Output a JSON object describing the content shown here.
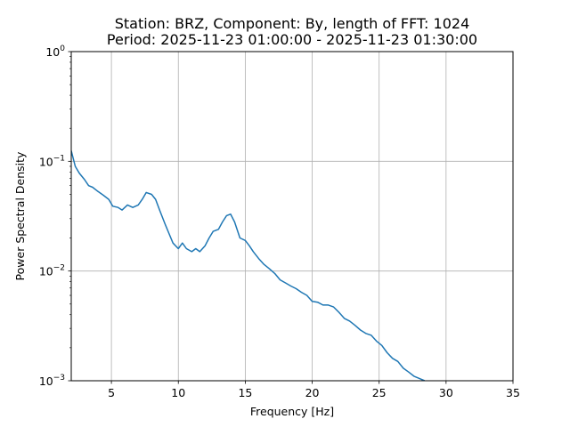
{
  "chart_data": {
    "type": "line",
    "title_line1": "Station: BRZ, Component: By, length of FFT: 1024",
    "title_line2": "Period: 2025-11-23 01:00:00 - 2025-11-23 01:30:00",
    "xlabel": "Frequency [Hz]",
    "ylabel": "Power Spectral Density",
    "xlim": [
      2,
      35
    ],
    "ylim": [
      0.001,
      1
    ],
    "yscale": "log",
    "grid": true,
    "line_color": "#1f77b4",
    "x_ticks": [
      5,
      10,
      15,
      20,
      25,
      30,
      35
    ],
    "y_ticks": [
      {
        "value": 0.001,
        "base": "10",
        "exp": "−3"
      },
      {
        "value": 0.01,
        "base": "10",
        "exp": "−2"
      },
      {
        "value": 0.1,
        "base": "10",
        "exp": "−1"
      },
      {
        "value": 1,
        "base": "10",
        "exp": "0"
      }
    ],
    "series": [
      {
        "x": [
          2.0,
          2.3,
          2.6,
          3.0,
          3.3,
          3.6,
          4.0,
          4.4,
          4.8,
          5.1,
          5.5,
          5.8,
          6.2,
          6.6,
          7.0,
          7.3,
          7.6,
          8.0,
          8.3,
          8.6,
          9.0,
          9.3,
          9.6,
          10.0,
          10.3,
          10.6,
          11.0,
          11.3,
          11.6,
          12.0,
          12.3,
          12.6,
          13.0,
          13.3,
          13.6,
          13.9,
          14.2,
          14.6,
          15.0,
          15.3,
          15.6,
          16.0,
          16.4,
          16.8,
          17.2,
          17.6,
          18.0,
          18.4,
          18.8,
          19.2,
          19.6,
          20.0,
          20.4,
          20.8,
          21.2,
          21.6,
          22.0,
          22.4,
          22.8,
          23.2,
          23.6,
          24.0,
          24.4,
          24.8,
          25.2,
          25.6,
          26.0,
          26.4,
          26.8,
          27.2,
          27.6,
          28.0,
          28.4
        ],
        "y": [
          0.125,
          0.09,
          0.078,
          0.068,
          0.06,
          0.058,
          0.053,
          0.049,
          0.045,
          0.039,
          0.038,
          0.036,
          0.04,
          0.038,
          0.04,
          0.045,
          0.052,
          0.05,
          0.045,
          0.036,
          0.027,
          0.022,
          0.018,
          0.016,
          0.018,
          0.016,
          0.015,
          0.016,
          0.015,
          0.017,
          0.02,
          0.023,
          0.024,
          0.028,
          0.032,
          0.033,
          0.028,
          0.02,
          0.019,
          0.017,
          0.015,
          0.013,
          0.0115,
          0.0105,
          0.0095,
          0.0083,
          0.0078,
          0.0073,
          0.0069,
          0.0064,
          0.006,
          0.0053,
          0.0052,
          0.0049,
          0.0049,
          0.0047,
          0.0042,
          0.0037,
          0.0035,
          0.0032,
          0.0029,
          0.0027,
          0.0026,
          0.0023,
          0.0021,
          0.0018,
          0.0016,
          0.0015,
          0.0013,
          0.0012,
          0.0011,
          0.00105,
          0.001
        ]
      }
    ]
  }
}
